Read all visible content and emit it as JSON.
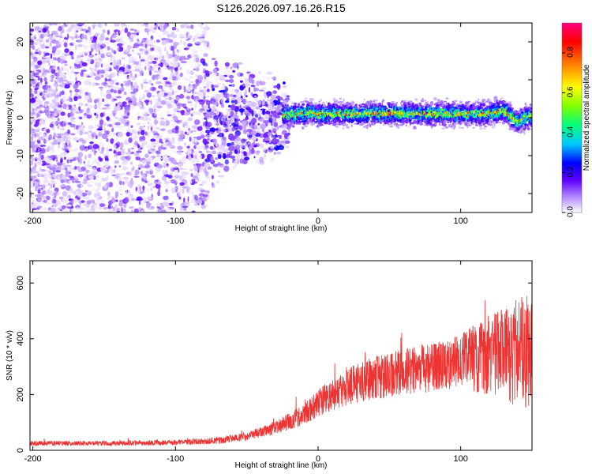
{
  "figure": {
    "title": "S126.2026.097.16.26.R15"
  },
  "chart_data": [
    {
      "id": "spectrogram",
      "type": "heatmap",
      "title": "S126.2026.097.16.26.R15",
      "xlabel": "Height of straight line (km)",
      "ylabel": "Frequency (Hz)",
      "xlim": [
        -202,
        150
      ],
      "ylim": [
        -25,
        25
      ],
      "xticks": [
        -200,
        -100,
        0,
        100
      ],
      "xtick_labels": [
        "-200",
        "-100",
        "0",
        "100"
      ],
      "yticks": [
        -20,
        -10,
        0,
        10,
        20
      ],
      "ytick_labels": [
        "-20",
        "-10",
        "0",
        "10",
        "20"
      ],
      "colorbar": {
        "label": "Normalized spectral amplitude",
        "range": [
          0,
          0.95
        ],
        "ticks": [
          0,
          0.2,
          0.4,
          0.6,
          0.8
        ],
        "tick_labels": [
          "0.0",
          "0.2",
          "0.4",
          "0.6",
          "0.8"
        ],
        "colors": [
          "#ffffff",
          "#b48cff",
          "#6000ff",
          "#0000ff",
          "#00c8ff",
          "#00ff80",
          "#80ff00",
          "#ffff00",
          "#ff8000",
          "#ff0000",
          "#ff0080"
        ]
      },
      "description_regions": [
        {
          "x_range": [
            -202,
            -80
          ],
          "pattern": "broadband noise",
          "amplitude": [
            0.0,
            0.2
          ]
        },
        {
          "x_range": [
            -80,
            -20
          ],
          "pattern": "scattered signal near 0 Hz",
          "amplitude": [
            0.05,
            0.3
          ]
        },
        {
          "x_range": [
            -20,
            150
          ],
          "pattern": "coherent carrier near 1 Hz",
          "amplitude": [
            0.3,
            0.95
          ]
        }
      ],
      "ridge": {
        "x": [
          -25,
          -15,
          -5,
          0,
          10,
          25,
          40,
          60,
          80,
          100,
          120,
          130,
          140,
          150
        ],
        "frequency": [
          1.0,
          0.8,
          1.5,
          0.8,
          1.0,
          1.0,
          1.2,
          1.0,
          1.0,
          1.0,
          1.0,
          2.0,
          -1.0,
          0.5
        ]
      }
    },
    {
      "id": "snr",
      "type": "line",
      "xlabel": "Height of straight line (km)",
      "ylabel": "SNR (10 * v/v)",
      "xlim": [
        -202,
        150
      ],
      "ylim": [
        0,
        680
      ],
      "xticks": [
        -200,
        -100,
        0,
        100
      ],
      "xtick_labels": [
        "-200",
        "-100",
        "0",
        "100"
      ],
      "yticks": [
        0,
        200,
        400,
        600
      ],
      "ytick_labels": [
        "0",
        "200",
        "400",
        "600"
      ],
      "color": "#ee3333",
      "trend": {
        "x": [
          -202,
          -150,
          -100,
          -70,
          -50,
          -30,
          -10,
          0,
          20,
          40,
          60,
          80,
          100,
          120,
          140,
          150
        ],
        "snr": [
          25,
          25,
          28,
          35,
          50,
          80,
          130,
          170,
          230,
          260,
          280,
          300,
          320,
          340,
          350,
          360
        ]
      }
    }
  ]
}
